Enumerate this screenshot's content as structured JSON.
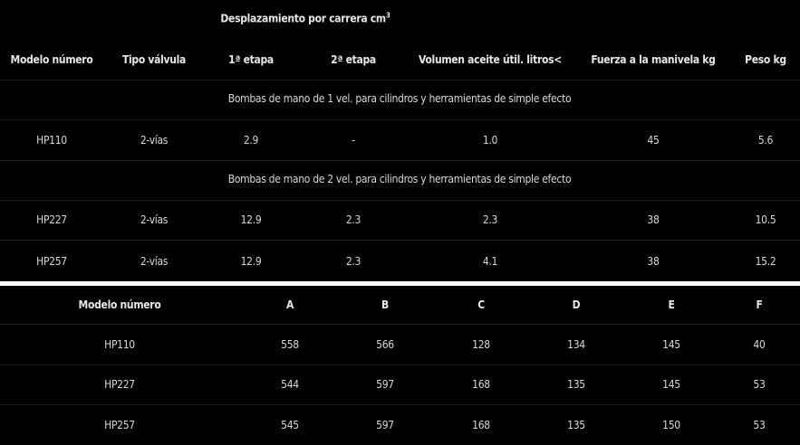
{
  "table1": {
    "group_header": "Desplazamiento por carrera cm",
    "group_header_sup": "3",
    "columns": [
      "Modelo número",
      "Tipo válvula",
      "1ª etapa",
      "2ª etapa",
      "Volumen aceite útil. litros<",
      "Fuerza a la manivela kg",
      "Peso kg"
    ],
    "sections": [
      {
        "title": "Bombas de mano de 1 vel. para cilindros y herramientas de simple efecto",
        "rows": [
          [
            "HP110",
            "2-vías",
            "2.9",
            "-",
            "1.0",
            "45",
            "5.6"
          ]
        ]
      },
      {
        "title": "Bombas de mano de 2 vel. para cilindros y herramientas de simple efecto",
        "rows": [
          [
            "HP227",
            "2-vías",
            "12.9",
            "2.3",
            "2.3",
            "38",
            "10.5"
          ],
          [
            "HP257",
            "2-vías",
            "12.9",
            "2.3",
            "4.1",
            "38",
            "15.2"
          ]
        ]
      }
    ]
  },
  "table2": {
    "columns": [
      "Modelo número",
      "A",
      "B",
      "C",
      "D",
      "E",
      "F"
    ],
    "rows": [
      [
        "HP110",
        "558",
        "566",
        "128",
        "134",
        "145",
        "40"
      ],
      [
        "HP227",
        "544",
        "597",
        "168",
        "135",
        "145",
        "53"
      ],
      [
        "HP257",
        "545",
        "597",
        "168",
        "135",
        "150",
        "53"
      ]
    ]
  }
}
